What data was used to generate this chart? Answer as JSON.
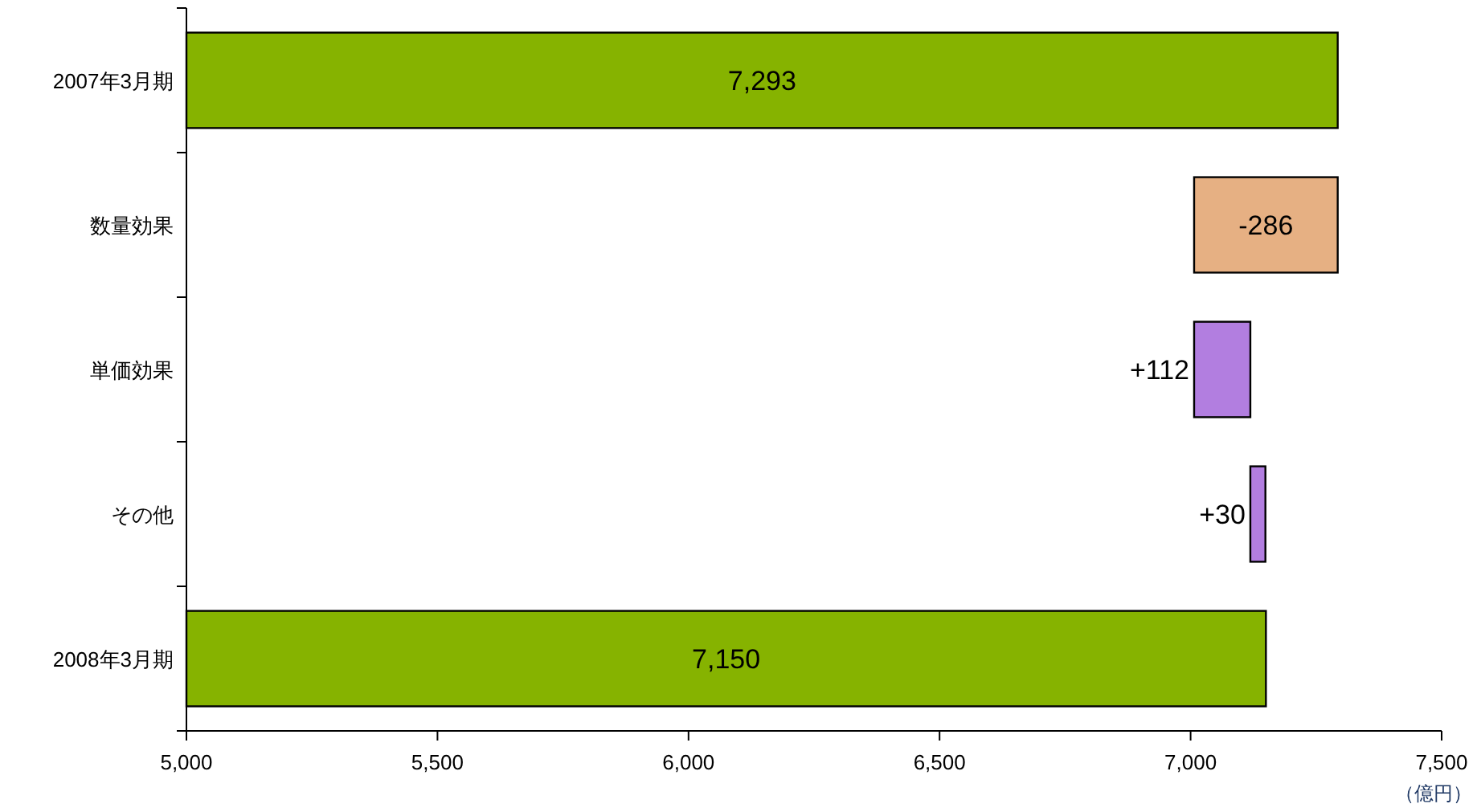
{
  "chart_data": {
    "type": "bar",
    "orientation": "horizontal",
    "categories": [
      "2007年3月期",
      "数量効果",
      "単価効果",
      "その他",
      "2008年3月期"
    ],
    "values": [
      7293,
      -286,
      112,
      30,
      7150
    ],
    "base": [
      null,
      7293,
      7007,
      7119,
      null
    ],
    "colors": [
      "#86b300",
      "#e6b083",
      "#b27ee0",
      "#b27ee0",
      "#86b300"
    ],
    "value_labels": [
      "7,293",
      "-286",
      "+112",
      "+30",
      "7,150"
    ],
    "xlim": [
      5000,
      7500
    ],
    "xticks": [
      {
        "value": 5000,
        "label": "5,000"
      },
      {
        "value": 5500,
        "label": "5,500"
      },
      {
        "value": 6000,
        "label": "6,000"
      },
      {
        "value": 6500,
        "label": "6,500"
      },
      {
        "value": 7000,
        "label": "7,000"
      },
      {
        "value": 7500,
        "label": "7,500"
      }
    ],
    "xlabel": "（億円）"
  }
}
